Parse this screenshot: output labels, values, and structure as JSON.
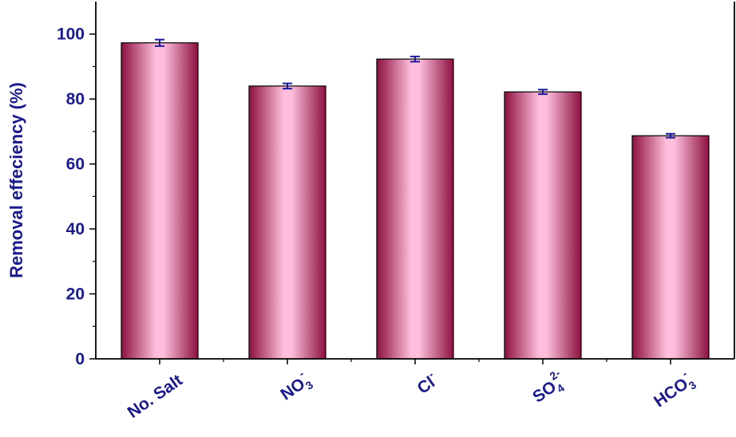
{
  "chart_data": {
    "type": "bar",
    "title": "",
    "xlabel": "",
    "ylabel": "Removal effeciency (%)",
    "ylim": [
      0,
      110
    ],
    "yticks": [
      "0",
      "20",
      "40",
      "60",
      "80",
      "100"
    ],
    "categories": [
      {
        "base": "No. Salt",
        "sub": "",
        "sup": ""
      },
      {
        "base": "NO",
        "sub": "3",
        "sup": "-"
      },
      {
        "base": "Cl",
        "sub": "",
        "sup": "-"
      },
      {
        "base": "SO",
        "sub": "4",
        "sup": "2-"
      },
      {
        "base": "HCO",
        "sub": "3",
        "sup": "-"
      }
    ],
    "values": [
      97.3,
      84.0,
      92.3,
      82.2,
      68.7
    ],
    "errors": [
      1.0,
      0.8,
      0.8,
      0.7,
      0.6
    ],
    "grid": false,
    "legend": "none"
  },
  "colors": {
    "bar_dark": "#8c1040",
    "bar_light": "#ffbfdc",
    "axis_text": "#1a1a8c",
    "error_bar": "#1a1aa0",
    "axis_line": "#000000"
  }
}
